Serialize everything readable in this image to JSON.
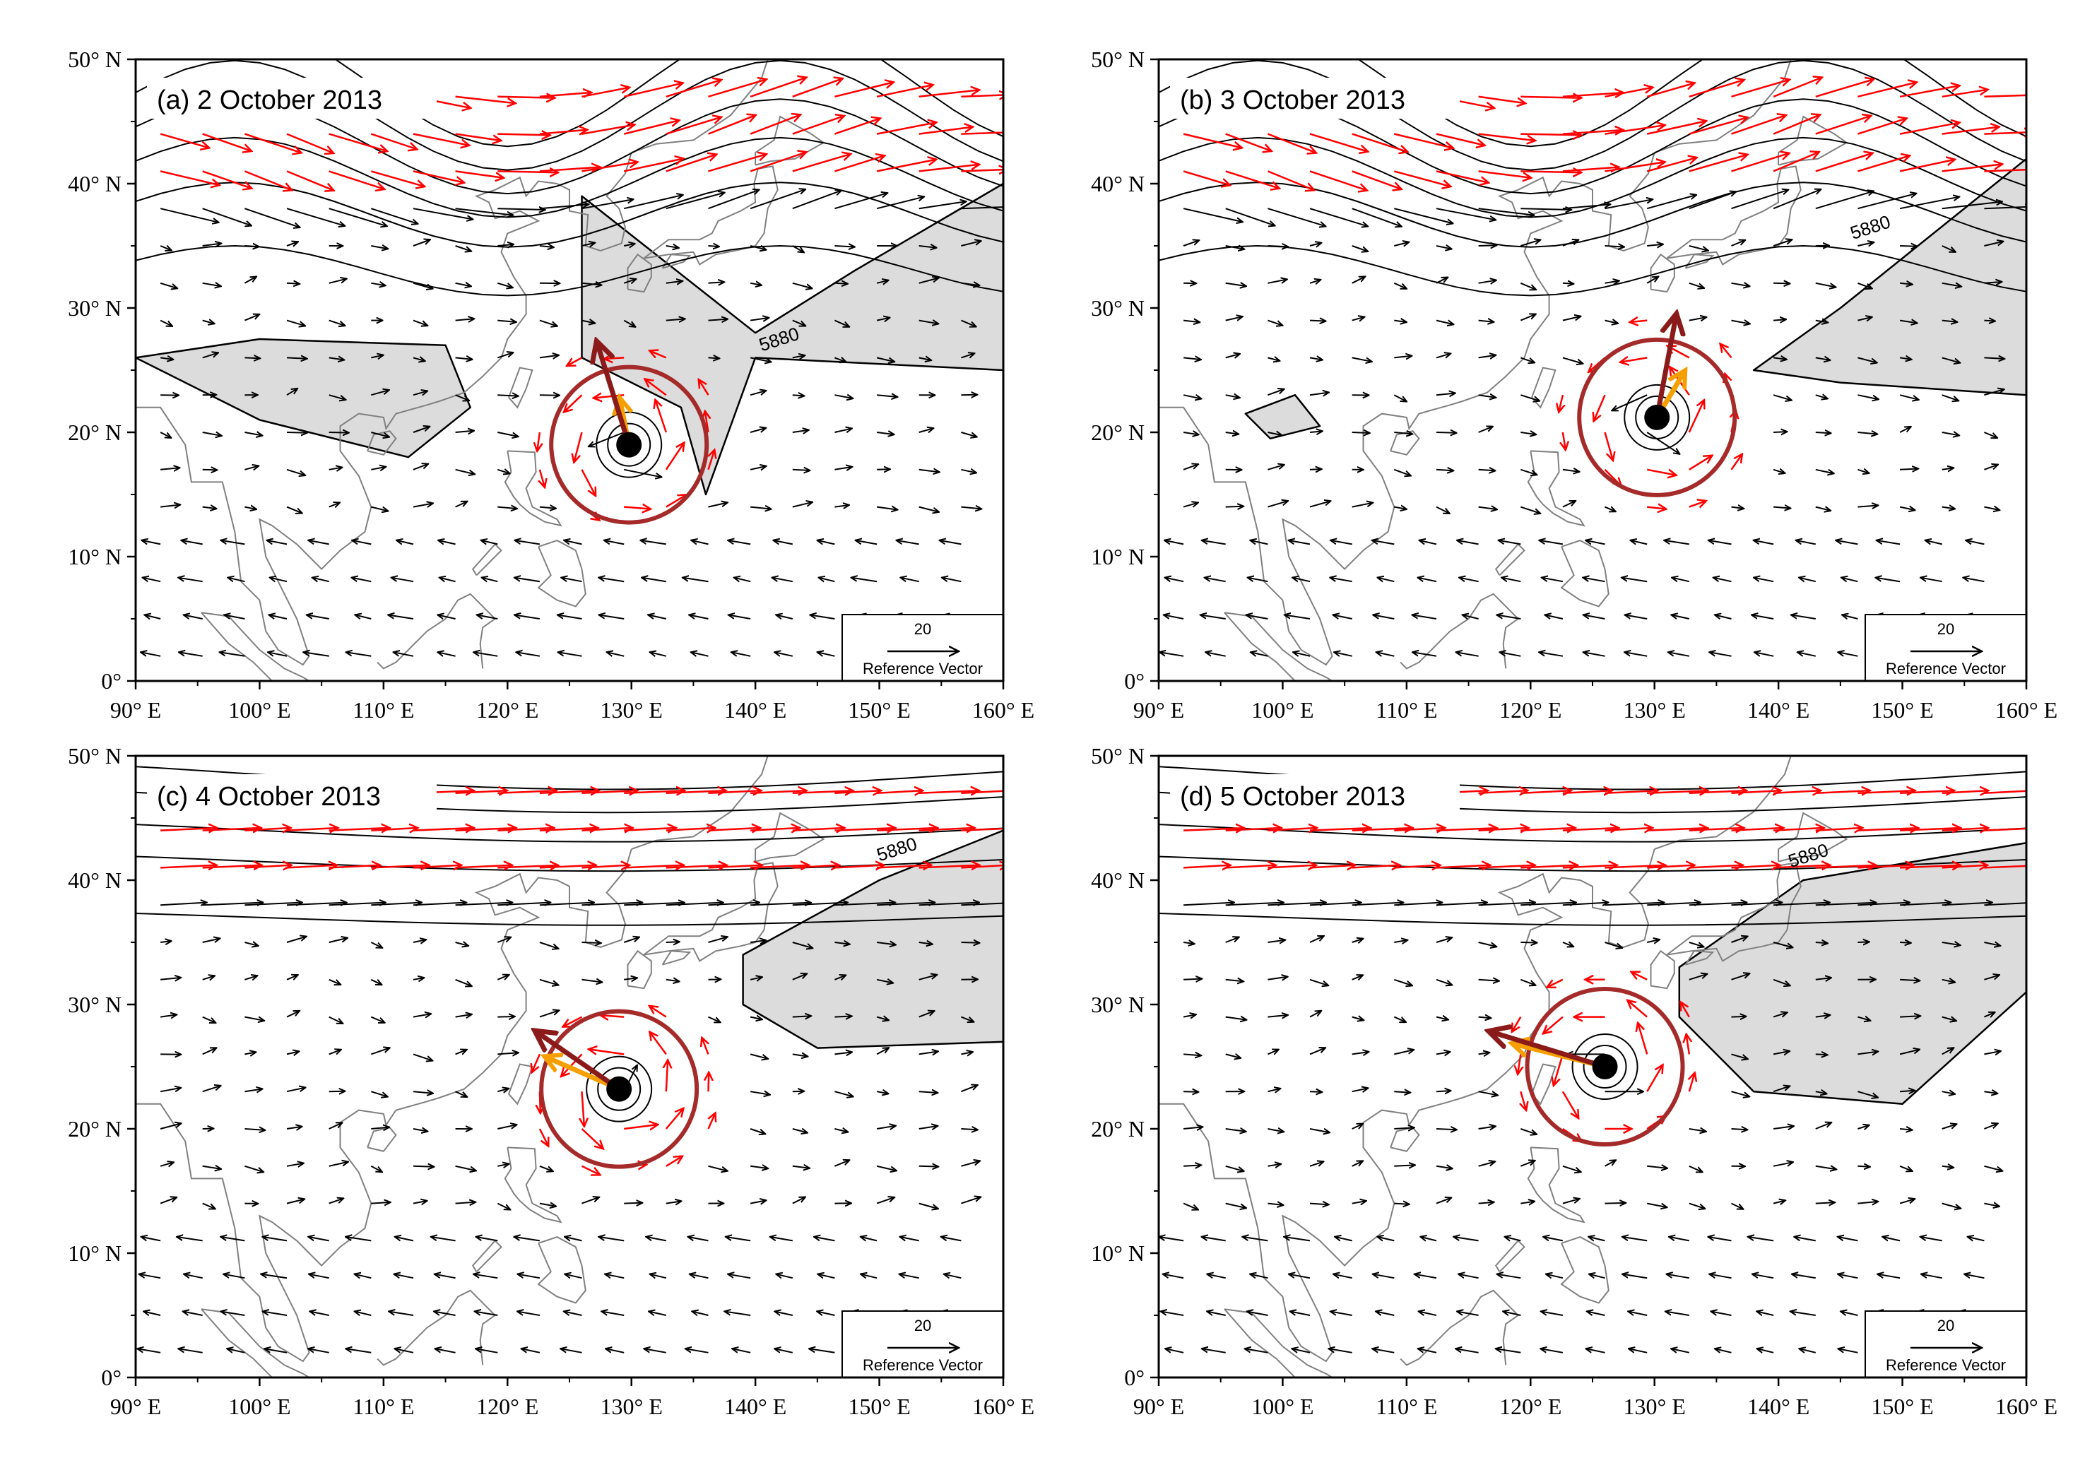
{
  "figure": {
    "panels": [
      {
        "id": "a",
        "title": "(a) 2 October 2013",
        "contour_label": "5880",
        "typhoon_center": {
          "lon": 129.8,
          "lat": 19.0
        },
        "ref_vector": {
          "value": "20",
          "label": "Reference Vector"
        }
      },
      {
        "id": "b",
        "title": "(b) 3 October 2013",
        "contour_label": "5880",
        "typhoon_center": {
          "lon": 130.2,
          "lat": 21.2
        },
        "ref_vector": {
          "value": "20",
          "label": "Reference Vector"
        }
      },
      {
        "id": "c",
        "title": "(c) 4 October 2013",
        "contour_label": "5880",
        "typhoon_center": {
          "lon": 129.0,
          "lat": 23.2
        },
        "ref_vector": {
          "value": "20",
          "label": "Reference Vector"
        }
      },
      {
        "id": "d",
        "title": "(d) 5 October 2013",
        "contour_label": "5880",
        "typhoon_center": {
          "lon": 126.0,
          "lat": 25.0
        },
        "ref_vector": {
          "value": "20",
          "label": "Reference Vector"
        }
      }
    ],
    "axes": {
      "lon_range": [
        90,
        160
      ],
      "lat_range": [
        0,
        50
      ],
      "x_ticks": [
        "90° E",
        "100° E",
        "110° E",
        "120° E",
        "130° E",
        "140° E",
        "150° E",
        "160° E"
      ],
      "y_ticks": [
        "0°",
        "10° N",
        "20° N",
        "30° N",
        "40° N",
        "50° N"
      ]
    },
    "colors": {
      "wind_vector": "#000000",
      "jet_vector": "#ff0000",
      "circle": "#a52a2a",
      "steering_orange": "#f5a000",
      "steering_dark": "#8b1a1a",
      "high_fill": "#dcdcdc",
      "coast": "#808080"
    }
  }
}
